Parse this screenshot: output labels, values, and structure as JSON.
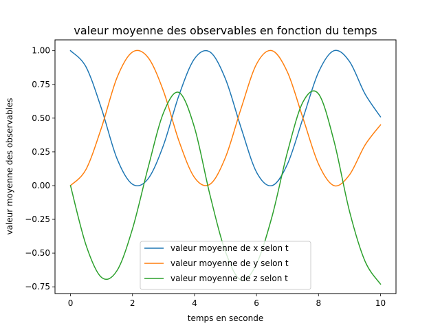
{
  "chart_data": {
    "type": "line",
    "title": "valeur moyenne des observables en fonction du temps",
    "xlabel": "temps en seconde",
    "ylabel": "valeur moyenne des observables",
    "xlim": [
      -0.5,
      10.5
    ],
    "ylim": [
      -0.8,
      1.08
    ],
    "xticks": [
      0,
      2,
      4,
      6,
      8,
      10
    ],
    "xtick_labels": [
      "0",
      "2",
      "4",
      "6",
      "8",
      "10"
    ],
    "yticks": [
      -0.75,
      -0.5,
      -0.25,
      0.0,
      0.25,
      0.5,
      0.75,
      1.0
    ],
    "ytick_labels": [
      "−0.75",
      "−0.50",
      "−0.25",
      "0.00",
      "0.25",
      "0.50",
      "0.75",
      "1.00"
    ],
    "grid": false,
    "legend_position": "lower-center",
    "x": [
      0,
      0.5,
      1,
      1.5,
      2,
      2.5,
      3,
      3.5,
      4,
      4.5,
      5,
      5.5,
      6,
      6.5,
      7,
      7.5,
      8,
      8.5,
      9,
      9.5,
      10
    ],
    "series": [
      {
        "name": "valeur moyenne de x selon t",
        "color": "#1f77b4",
        "values": [
          1.0,
          0.88,
          0.57,
          0.2,
          0.01,
          0.05,
          0.3,
          0.67,
          0.94,
          0.99,
          0.79,
          0.43,
          0.1,
          0.0,
          0.16,
          0.5,
          0.84,
          1.0,
          0.92,
          0.68,
          0.51
        ]
      },
      {
        "name": "valeur moyenne de y selon t",
        "color": "#ff7f0e",
        "values": [
          0.0,
          0.12,
          0.43,
          0.8,
          0.99,
          0.95,
          0.7,
          0.33,
          0.06,
          0.01,
          0.21,
          0.57,
          0.9,
          1.0,
          0.84,
          0.5,
          0.16,
          0.0,
          0.08,
          0.3,
          0.45
        ]
      },
      {
        "name": "valeur moyenne de z selon t",
        "color": "#2ca02c",
        "values": [
          0.0,
          -0.44,
          -0.68,
          -0.63,
          -0.32,
          0.13,
          0.54,
          0.69,
          0.43,
          -0.07,
          -0.49,
          -0.7,
          -0.58,
          -0.23,
          0.25,
          0.62,
          0.68,
          0.33,
          -0.19,
          -0.56,
          -0.73
        ]
      }
    ]
  }
}
